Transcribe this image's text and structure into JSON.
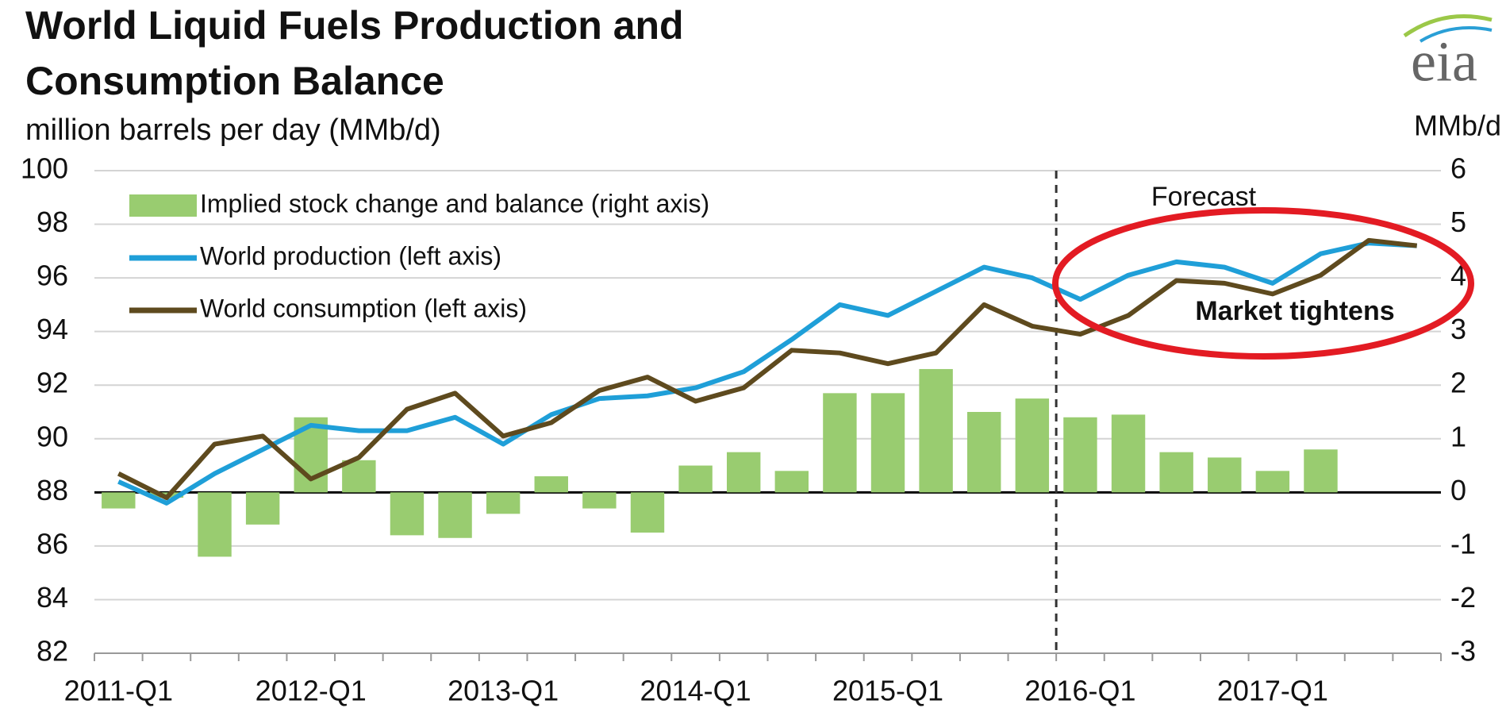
{
  "chart_data": {
    "type": "bar-line",
    "title": "World Liquid Fuels Production and",
    "title2": "Consumption Balance",
    "subtitle": "million barrels per day (MMb/d)",
    "y2_label": "MMb/d",
    "logo": "eia",
    "annotations": [
      "Forecast",
      "Market tightens"
    ],
    "categories": [
      "2011-Q1",
      null,
      null,
      null,
      "2012-Q1",
      null,
      null,
      null,
      "2013-Q1",
      null,
      null,
      null,
      "2014-Q1",
      null,
      null,
      null,
      "2015-Q1",
      null,
      null,
      null,
      "2016-Q1",
      null,
      null,
      null,
      "2017-Q1",
      null,
      null,
      null
    ],
    "series": [
      {
        "name": "Implied stock change and balance (right axis)",
        "color": "#99cc70",
        "axis": "y2",
        "kind": "bar",
        "values": [
          -0.3,
          -0.1,
          -1.2,
          -0.6,
          1.4,
          0.6,
          -0.8,
          -0.85,
          -0.4,
          0.3,
          -0.3,
          -0.75,
          0.5,
          0.75,
          0.4,
          1.85,
          1.85,
          2.3,
          1.5,
          1.75,
          1.4,
          1.45,
          0.75,
          0.65,
          0.4,
          0.8,
          null,
          null
        ]
      },
      {
        "name": "World production (left axis)",
        "color": "#1f9fd8",
        "kind": "line",
        "values": [
          88.4,
          87.6,
          88.7,
          89.6,
          90.5,
          90.3,
          90.3,
          90.8,
          89.8,
          90.9,
          91.5,
          91.6,
          91.9,
          92.5,
          93.7,
          95.0,
          94.6,
          95.5,
          96.4,
          96.0,
          95.2,
          96.1,
          96.6,
          96.4,
          95.8,
          96.9,
          97.3,
          97.2
        ]
      },
      {
        "name": "World consumption (left axis)",
        "color": "#5e4a1e",
        "kind": "line",
        "values": [
          88.7,
          87.8,
          89.8,
          90.1,
          88.5,
          89.3,
          91.1,
          91.7,
          90.1,
          90.6,
          91.8,
          92.3,
          91.4,
          91.9,
          93.3,
          93.2,
          92.8,
          93.2,
          95.0,
          94.2,
          93.9,
          94.6,
          95.9,
          95.8,
          95.4,
          96.1,
          97.4,
          97.2
        ]
      }
    ],
    "ylim": [
      82,
      100
    ],
    "yticks": [
      82,
      84,
      86,
      88,
      90,
      92,
      94,
      96,
      98,
      100
    ],
    "y2lim": [
      -3,
      6
    ],
    "y2ticks": [
      -3,
      -2,
      -1,
      0,
      1,
      2,
      3,
      4,
      5,
      6
    ],
    "grid": true
  }
}
